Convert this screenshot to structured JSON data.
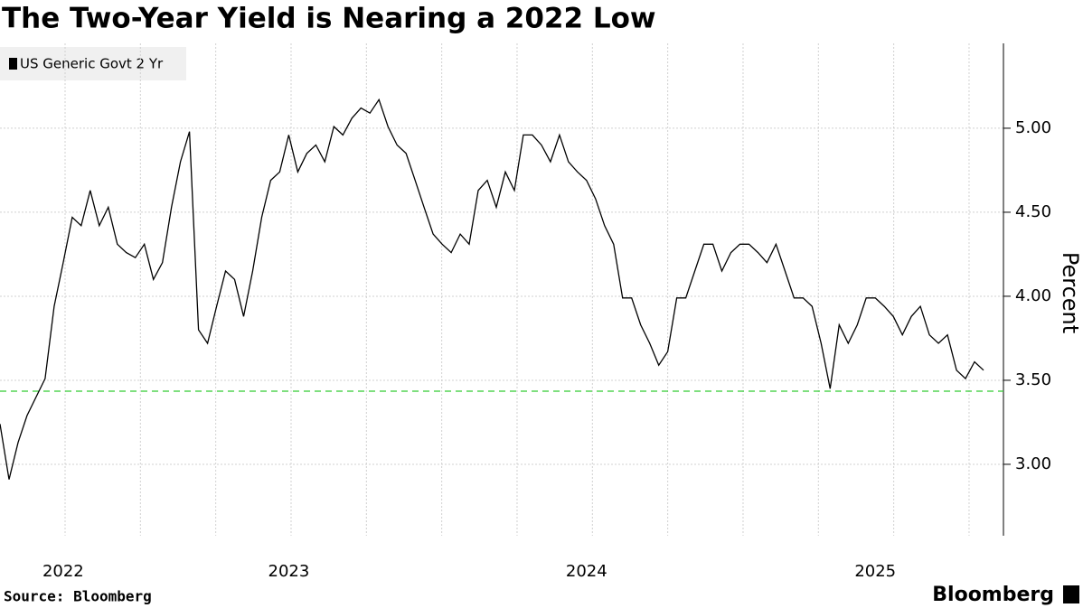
{
  "chart_data": {
    "type": "line",
    "title": "The Two-Year Yield is Nearing a 2022 Low",
    "source": "Source: Bloomberg",
    "brand": "Bloomberg",
    "y_label": "Percent",
    "categories": [
      null,
      null,
      null,
      null,
      null,
      null,
      null,
      "2022",
      null,
      null,
      null,
      null,
      null,
      null,
      null,
      null,
      null,
      null,
      null,
      null,
      null,
      null,
      null,
      null,
      null,
      null,
      null,
      null,
      null,
      null,
      null,
      null,
      "2023",
      null,
      null,
      null,
      null,
      null,
      null,
      null,
      null,
      null,
      null,
      null,
      null,
      null,
      null,
      null,
      null,
      null,
      null,
      null,
      null,
      null,
      null,
      null,
      null,
      null,
      null,
      null,
      null,
      null,
      null,
      null,
      null,
      "2024",
      null,
      null,
      null,
      null,
      null,
      null,
      null,
      null,
      null,
      null,
      null,
      null,
      null,
      null,
      null,
      null,
      null,
      null,
      null,
      null,
      null,
      null,
      null,
      null,
      null,
      null,
      null,
      null,
      null,
      null,
      null,
      "2025",
      null,
      null,
      null,
      null,
      null,
      null,
      null,
      null,
      null,
      null,
      null,
      null
    ],
    "series": [
      {
        "name": "US Generic Govt 2 Yr",
        "color": "#000000",
        "values": [
          3.24,
          2.91,
          3.13,
          3.29,
          3.4,
          3.51,
          3.94,
          4.2,
          4.47,
          4.42,
          4.63,
          4.42,
          4.53,
          4.31,
          4.26,
          4.23,
          4.31,
          4.1,
          4.2,
          4.53,
          4.8,
          4.98,
          3.8,
          3.72,
          3.94,
          4.15,
          4.1,
          3.88,
          4.15,
          4.47,
          4.69,
          4.74,
          4.96,
          4.74,
          4.85,
          4.9,
          4.8,
          5.01,
          4.96,
          5.06,
          5.12,
          5.09,
          5.17,
          5.01,
          4.9,
          4.85,
          4.69,
          4.53,
          4.37,
          4.31,
          4.26,
          4.37,
          4.31,
          4.63,
          4.69,
          4.53,
          4.74,
          4.63,
          4.96,
          4.96,
          4.9,
          4.8,
          4.96,
          4.8,
          4.74,
          4.69,
          4.58,
          4.42,
          4.31,
          3.99,
          3.99,
          3.83,
          3.72,
          3.59,
          3.67,
          3.99,
          3.99,
          4.15,
          4.31,
          4.31,
          4.15,
          4.26,
          4.31,
          4.31,
          4.26,
          4.2,
          4.31,
          4.15,
          3.99,
          3.99,
          3.94,
          3.72,
          3.45,
          3.83,
          3.72,
          3.83,
          3.99,
          3.99,
          3.94,
          3.88,
          3.77,
          3.88,
          3.94,
          3.77,
          3.72,
          3.77,
          3.56,
          3.51,
          3.61,
          3.56
        ]
      }
    ],
    "reference_line": {
      "value": 3.435,
      "color": "#33cc33"
    },
    "ylim": [
      2.575,
      5.505
    ],
    "yticks": [
      {
        "value": 3,
        "label": "3.00"
      },
      {
        "value": 3.5,
        "label": "3.50"
      },
      {
        "value": 4,
        "label": "4.00"
      },
      {
        "value": 4.5,
        "label": "4.50"
      },
      {
        "value": 5,
        "label": "5.00"
      }
    ],
    "grid": true
  }
}
